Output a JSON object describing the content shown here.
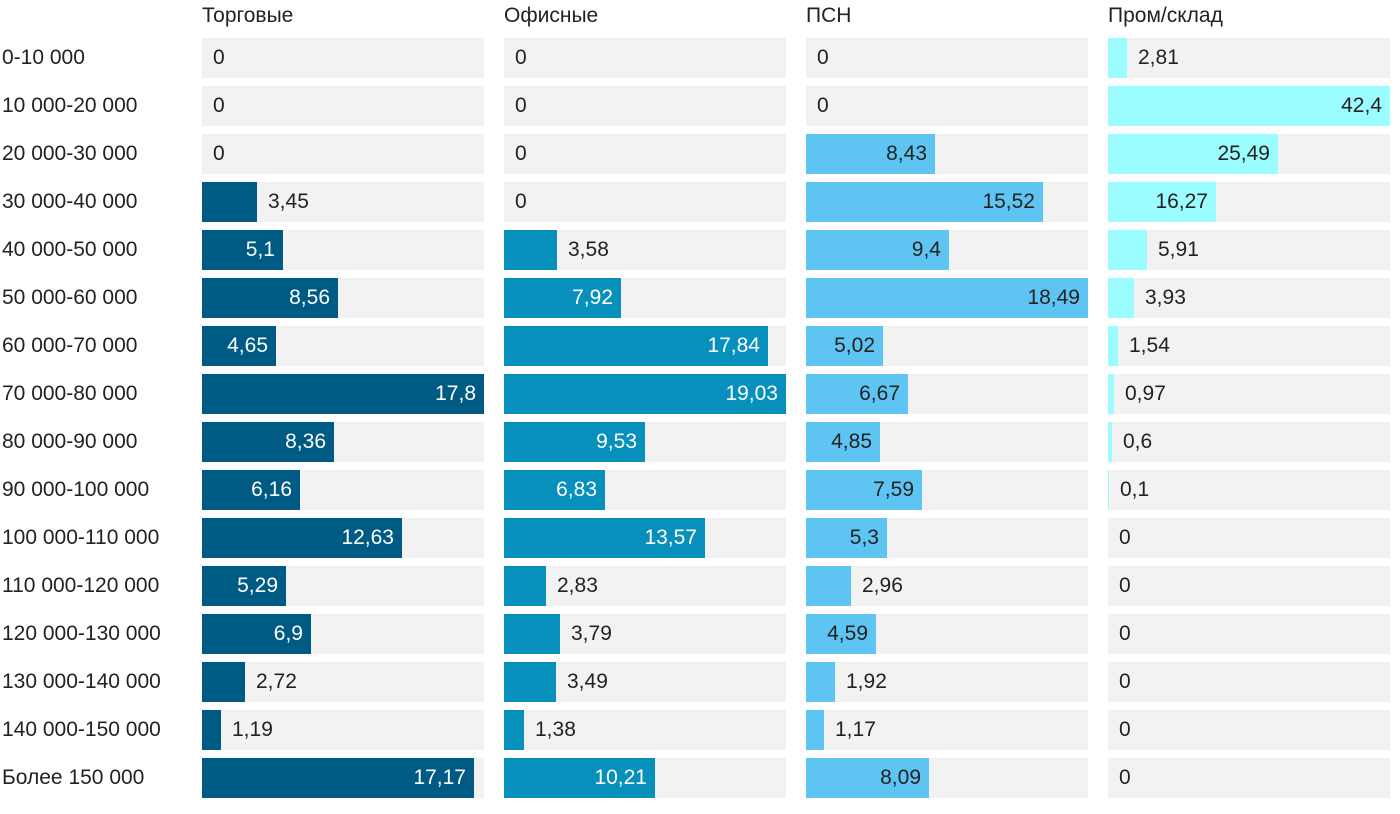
{
  "chart_data": {
    "type": "bar",
    "orientation": "horizontal",
    "layout": "small-multiples",
    "title": "",
    "xlabel": "",
    "ylabel": "",
    "grid": false,
    "legend": "none",
    "categories": [
      "0-10 000",
      "10 000-20 000",
      "20 000-30 000",
      "30 000-40 000",
      "40 000-50 000",
      "50 000-60 000",
      "60 000-70 000",
      "70 000-80 000",
      "80 000-90 000",
      "90 000-100 000",
      "100 000-110 000",
      "110 000-120 000",
      "120 000-130 000",
      "130 000-140 000",
      "140 000-150 000",
      "Более 150 000"
    ],
    "series": [
      {
        "name": "Торговые",
        "color": "#005b84",
        "text_color": "#ffffff",
        "values": [
          0,
          0,
          0,
          3.45,
          5.1,
          8.56,
          4.65,
          17.8,
          8.36,
          6.16,
          12.63,
          5.29,
          6.9,
          2.72,
          1.19,
          17.17
        ],
        "labels": [
          "0",
          "0",
          "0",
          "3,45",
          "5,1",
          "8,56",
          "4,65",
          "17,8",
          "8,36",
          "6,16",
          "12,63",
          "5,29",
          "6,9",
          "2,72",
          "1,19",
          "17,17"
        ]
      },
      {
        "name": "Офисные",
        "color": "#0890bd",
        "text_color": "#ffffff",
        "values": [
          0,
          0,
          0,
          0,
          3.58,
          7.92,
          17.84,
          19.03,
          9.53,
          6.83,
          13.57,
          2.83,
          3.79,
          3.49,
          1.38,
          10.21
        ],
        "labels": [
          "0",
          "0",
          "0",
          "0",
          "3,58",
          "7,92",
          "17,84",
          "19,03",
          "9,53",
          "6,83",
          "13,57",
          "2,83",
          "3,79",
          "3,49",
          "1,38",
          "10,21"
        ]
      },
      {
        "name": "ПСН",
        "color": "#5ec5f3",
        "text_color": "#222222",
        "values": [
          0,
          0,
          8.43,
          15.52,
          9.4,
          18.49,
          5.02,
          6.67,
          4.85,
          7.59,
          5.3,
          2.96,
          4.59,
          1.92,
          1.17,
          8.09
        ],
        "labels": [
          "0",
          "0",
          "8,43",
          "15,52",
          "9,4",
          "18,49",
          "5,02",
          "6,67",
          "4,85",
          "7,59",
          "5,3",
          "2,96",
          "4,59",
          "1,92",
          "1,17",
          "8,09"
        ]
      },
      {
        "name": "Пром/склад",
        "color": "#9bfdff",
        "text_color": "#222222",
        "values": [
          2.81,
          42.4,
          25.49,
          16.27,
          5.91,
          3.93,
          1.54,
          0.97,
          0.6,
          0.1,
          0,
          0,
          0,
          0,
          0,
          0
        ],
        "labels": [
          "2,81",
          "42,4",
          "25,49",
          "16,27",
          "5,91",
          "3,93",
          "1,54",
          "0,97",
          "0,6",
          "0,1",
          "0",
          "0",
          "0",
          "0",
          "0",
          "0"
        ]
      }
    ]
  }
}
